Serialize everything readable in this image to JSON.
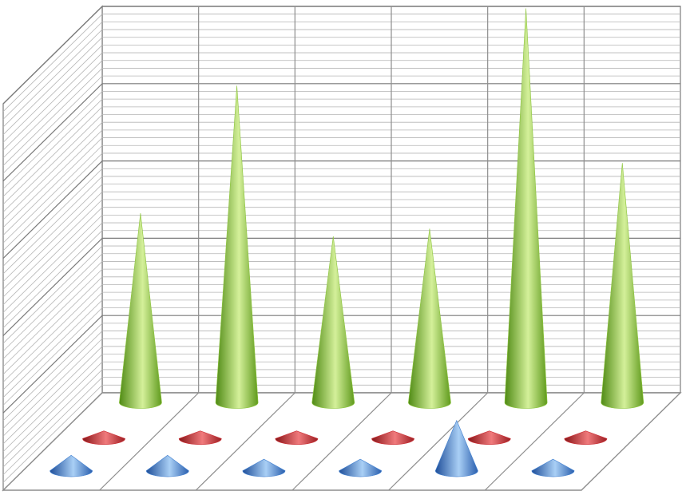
{
  "chart_data": {
    "type": "bar",
    "style": "3d-cone",
    "title": "",
    "xlabel": "",
    "ylabel": "",
    "categories": [
      "",
      "",
      "",
      "",
      "",
      ""
    ],
    "ylim": [
      0,
      100
    ],
    "grid": true,
    "legend": "none",
    "series": [
      {
        "color": "#3f7fd0",
        "values": [
          4,
          4,
          3,
          3,
          13,
          3
        ]
      },
      {
        "color": "#cc2f35",
        "values": [
          2,
          2,
          2,
          2,
          2,
          2
        ]
      },
      {
        "color": "#8ec63f",
        "values": [
          49,
          82,
          43,
          45,
          102,
          62
        ]
      }
    ]
  }
}
